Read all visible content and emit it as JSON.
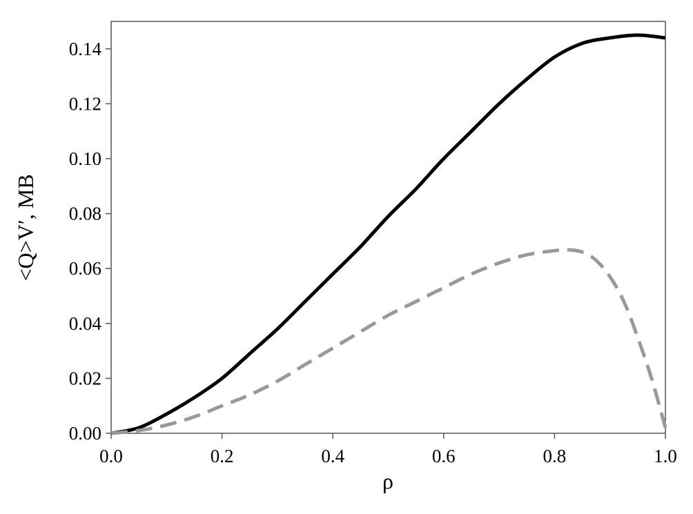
{
  "chart_data": {
    "type": "line",
    "xlabel": "ρ",
    "ylabel": "<Q>V′, MB",
    "xlim": [
      0.0,
      1.0
    ],
    "ylim": [
      0.0,
      0.15
    ],
    "xticks": [
      "0.0",
      "0.2",
      "0.4",
      "0.6",
      "0.8",
      "1.0"
    ],
    "yticks": [
      "0.00",
      "0.02",
      "0.04",
      "0.06",
      "0.08",
      "0.10",
      "0.12",
      "0.14"
    ],
    "grid": false,
    "legend": "none",
    "series": [
      {
        "style": "solid",
        "color": "#000000",
        "x": [
          0.0,
          0.05,
          0.1,
          0.15,
          0.2,
          0.25,
          0.3,
          0.35,
          0.4,
          0.45,
          0.5,
          0.55,
          0.6,
          0.65,
          0.7,
          0.75,
          0.8,
          0.85,
          0.9,
          0.95,
          1.0
        ],
        "y": [
          0.0,
          0.002,
          0.007,
          0.013,
          0.02,
          0.029,
          0.038,
          0.048,
          0.058,
          0.068,
          0.079,
          0.089,
          0.1,
          0.11,
          0.12,
          0.129,
          0.137,
          0.142,
          0.144,
          0.145,
          0.144
        ]
      },
      {
        "style": "dashed",
        "color": "#999999",
        "x": [
          0.0,
          0.05,
          0.1,
          0.15,
          0.2,
          0.25,
          0.3,
          0.35,
          0.4,
          0.45,
          0.5,
          0.55,
          0.6,
          0.65,
          0.7,
          0.75,
          0.8,
          0.825,
          0.85,
          0.875,
          0.9,
          0.925,
          0.95,
          0.975,
          1.0
        ],
        "y": [
          0.0,
          0.001,
          0.003,
          0.006,
          0.01,
          0.014,
          0.019,
          0.025,
          0.031,
          0.037,
          0.043,
          0.048,
          0.053,
          0.058,
          0.062,
          0.065,
          0.0665,
          0.0668,
          0.066,
          0.063,
          0.057,
          0.048,
          0.035,
          0.02,
          0.002
        ]
      }
    ]
  }
}
